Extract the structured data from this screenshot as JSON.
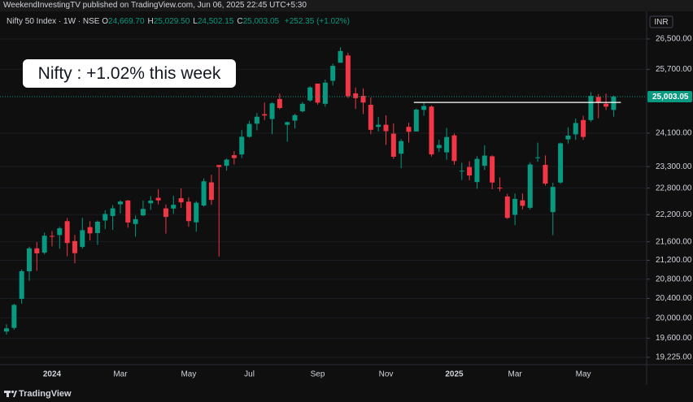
{
  "header": {
    "publisher": "WeekendInvestingTV published on TradingView.com, Jun 06, 2025 22:45 UTC+5:30",
    "currency": "INR",
    "brand": "TradingView"
  },
  "legend": {
    "symbol": "Nifty 50 Index · 1W · NSE",
    "items": [
      {
        "key": "O",
        "label": "24,669.70"
      },
      {
        "key": "H",
        "label": "25,029.50"
      },
      {
        "key": "L",
        "label": "24,502.15"
      },
      {
        "key": "C",
        "label": "25,003.05"
      }
    ],
    "change": "+252.35 (+1.02%)"
  },
  "chart_data": {
    "type": "candlestick",
    "annotation": "Nifty : +1.02% this week",
    "categories": [
      null,
      null,
      null,
      null,
      null,
      null,
      "2024",
      null,
      null,
      null,
      null,
      null,
      null,
      null,
      null,
      "Mar",
      null,
      null,
      null,
      null,
      null,
      null,
      null,
      null,
      "May",
      null,
      null,
      null,
      null,
      null,
      null,
      null,
      "Jul",
      null,
      null,
      null,
      null,
      null,
      null,
      null,
      null,
      "Sep",
      null,
      null,
      null,
      null,
      null,
      null,
      null,
      null,
      "Nov",
      null,
      null,
      null,
      null,
      null,
      null,
      null,
      null,
      "2025",
      null,
      null,
      null,
      null,
      null,
      null,
      null,
      "Mar",
      null,
      null,
      null,
      null,
      null,
      null,
      null,
      null,
      "May",
      null,
      null,
      null,
      null
    ],
    "open": [
      19731,
      19803,
      20391,
      20966,
      21457,
      21365,
      21727,
      21747,
      22053,
      21615,
      21487,
      21921,
      21790,
      22069,
      22169,
      22431,
      22517,
      21990,
      22182,
      22455,
      22578,
      22339,
      22336,
      22569,
      22490,
      22027,
      22404,
      22933,
      23337,
      23320,
      23570,
      23587,
      24010,
      24330,
      24565,
      24445,
      24943,
      24303,
      24406,
      24637,
      24907,
      25333,
      24823,
      25406,
      25872,
      26061,
      25085,
      25023,
      24798,
      24253,
      24304,
      24087,
      23605,
      24253,
      24140,
      24672,
      24753,
      23738,
      23638,
      24045,
      23195,
      23290,
      22940,
      23319,
      23543,
      22810,
      22609,
      22194,
      22521,
      22353,
      23515,
      23341,
      22255,
      22929,
      23949,
      24070,
      24420,
      24420,
      24996,
      24825,
      24669.7
    ],
    "high": [
      19876,
      20291,
      21006,
      21493,
      21593,
      21801,
      21834,
      21928,
      22124,
      21750,
      22127,
      22053,
      22069,
      22297,
      22413,
      22526,
      22527,
      22180,
      22516,
      22619,
      22776,
      22427,
      22625,
      22795,
      22588,
      22502,
      23026,
      23110,
      23339,
      23490,
      23667,
      24174,
      24401,
      24593,
      24854,
      24861,
      25079,
      24382,
      24573,
      24867,
      25268,
      25333,
      25433,
      25849,
      26277,
      26135,
      25234,
      25213,
      24978,
      24498,
      24537,
      24336,
      23956,
      24354,
      24705,
      24857,
      24781,
      23938,
      24226,
      24089,
      23391,
      23426,
      23546,
      23807,
      23568,
      23049,
      22668,
      22677,
      22677,
      23403,
      23869,
      23565,
      22924,
      23872,
      24242,
      24457,
      24526,
      25116,
      25070,
      25079,
      25029.5
    ],
    "low": [
      19670,
      19768,
      20291,
      20769,
      20977,
      21330,
      21500,
      21448,
      21285,
      21137,
      21449,
      21629,
      21530,
      21875,
      21860,
      22224,
      21906,
      21710,
      22163,
      22303,
      22428,
      21777,
      22213,
      22349,
      21932,
      21821,
      22378,
      22418,
      21281,
      23206,
      23350,
      23500,
      23992,
      24168,
      24420,
      24074,
      24686,
      23894,
      24212,
      24607,
      24874,
      24802,
      24753,
      25285,
      25871,
      24966,
      24694,
      24567,
      24074,
      24140,
      23816,
      23484,
      23263,
      23874,
      24140,
      24528,
      23537,
      23647,
      23460,
      23344,
      22987,
      22981,
      22786,
      23222,
      22774,
      22725,
      22105,
      21965,
      22315,
      22314,
      23412,
      22857,
      21744,
      22900,
      23847,
      23934,
      23935,
      24378,
      24462,
      24671,
      24502.15
    ],
    "close": [
      19795,
      20268,
      20969,
      21457,
      21349,
      21731,
      21711,
      21895,
      21572,
      21353,
      21854,
      21783,
      22041,
      22213,
      22339,
      22494,
      22023,
      22097,
      22327,
      22514,
      22519,
      22147,
      22420,
      22476,
      22055,
      22466,
      22957,
      22531,
      23290,
      23465,
      23501,
      24011,
      24324,
      24502,
      24531,
      24835,
      24718,
      24367,
      24541,
      24823,
      25236,
      24852,
      25357,
      25791,
      26179,
      25015,
      24964,
      24854,
      24181,
      24304,
      24148,
      23533,
      23907,
      24131,
      24678,
      24768,
      23588,
      23813,
      24005,
      23432,
      23203,
      23092,
      23482,
      23560,
      22929,
      22796,
      22125,
      22553,
      22397,
      23350,
      23519,
      22904,
      22829,
      23852,
      24039,
      24347,
      24008,
      25020,
      24853,
      24751,
      25003.05
    ],
    "up_color": "#089981",
    "down_color": "#f23645",
    "log_scale": true,
    "grid": true,
    "ylim": [
      19083,
      27247
    ],
    "yticks": [
      {
        "value": 26500,
        "label": "26,500.00"
      },
      {
        "value": 25700,
        "label": "25,700.00"
      },
      {
        "value": 24100,
        "label": "24,100.00"
      },
      {
        "value": 23300,
        "label": "23,300.00"
      },
      {
        "value": 22800,
        "label": "22,800.00"
      },
      {
        "value": 22200,
        "label": "22,200.00"
      },
      {
        "value": 21600,
        "label": "21,600.00"
      },
      {
        "value": 21200,
        "label": "21,200.00"
      },
      {
        "value": 20800,
        "label": "20,800.00"
      },
      {
        "value": 20400,
        "label": "20,400.00"
      },
      {
        "value": 20000,
        "label": "20,000.00"
      },
      {
        "value": 19600,
        "label": "19,600.00"
      },
      {
        "value": 19225,
        "label": "19,225.00"
      }
    ],
    "last_price": {
      "value": 25003.05,
      "label": "25,003.05"
    },
    "hline": {
      "value": 24857,
      "start_index": 54,
      "color": "#ffffff"
    }
  }
}
